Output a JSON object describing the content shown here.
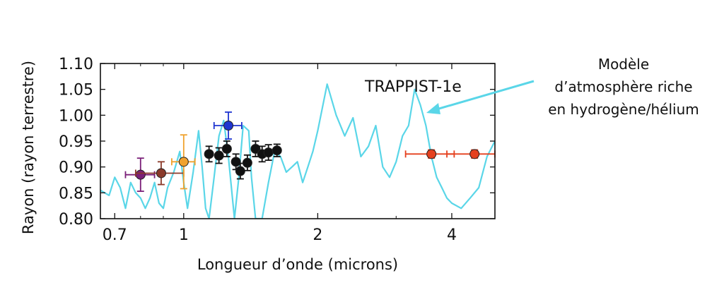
{
  "chart_data": {
    "type": "scatter",
    "xlabel": "Longueur d’onde (microns)",
    "ylabel": "Rayon (rayon terrestre)",
    "x_scale": "log",
    "xlim": [
      0.65,
      5.0
    ],
    "ylim": [
      0.8,
      1.1
    ],
    "x_ticks": [
      0.7,
      1,
      2,
      4
    ],
    "x_tick_labels": [
      "0.7",
      "1",
      "2",
      "4"
    ],
    "y_ticks": [
      0.8,
      0.85,
      0.9,
      0.95,
      1.0,
      1.05,
      1.1
    ],
    "y_tick_labels": [
      "0.80",
      "0.85",
      "0.90",
      "0.95",
      "1.00",
      "1.05",
      "1.10"
    ],
    "grid": false,
    "annotations": [
      {
        "text": "TRAPPIST-1e"
      },
      {
        "text": "Modèle",
        "line": 1
      },
      {
        "text": "d’atmosphère riche",
        "line": 2
      },
      {
        "text": "en hydrogène/hélium",
        "line": 3
      }
    ],
    "model": {
      "color": "#5ad6e8",
      "x": [
        0.65,
        0.68,
        0.7,
        0.72,
        0.74,
        0.76,
        0.78,
        0.8,
        0.82,
        0.84,
        0.86,
        0.88,
        0.9,
        0.92,
        0.95,
        0.98,
        1.0,
        1.02,
        1.05,
        1.08,
        1.1,
        1.12,
        1.14,
        1.17,
        1.2,
        1.23,
        1.26,
        1.3,
        1.33,
        1.36,
        1.4,
        1.42,
        1.45,
        1.5,
        1.55,
        1.6,
        1.65,
        1.7,
        1.75,
        1.8,
        1.85,
        1.9,
        1.95,
        2.0,
        2.1,
        2.2,
        2.3,
        2.4,
        2.5,
        2.6,
        2.7,
        2.8,
        2.9,
        3.0,
        3.1,
        3.2,
        3.3,
        3.4,
        3.5,
        3.6,
        3.7,
        3.8,
        3.9,
        4.0,
        4.2,
        4.4,
        4.6,
        4.8,
        5.0
      ],
      "y": [
        0.855,
        0.845,
        0.88,
        0.86,
        0.82,
        0.87,
        0.85,
        0.84,
        0.82,
        0.84,
        0.87,
        0.83,
        0.82,
        0.86,
        0.89,
        0.93,
        0.87,
        0.82,
        0.89,
        0.97,
        0.9,
        0.82,
        0.8,
        0.88,
        0.96,
        0.99,
        0.92,
        0.8,
        0.88,
        0.98,
        0.97,
        0.88,
        0.8,
        0.8,
        0.87,
        0.93,
        0.92,
        0.89,
        0.9,
        0.91,
        0.87,
        0.9,
        0.93,
        0.97,
        1.06,
        1.0,
        0.96,
        0.995,
        0.92,
        0.94,
        0.98,
        0.9,
        0.88,
        0.91,
        0.96,
        0.98,
        1.05,
        1.02,
        0.98,
        0.92,
        0.88,
        0.86,
        0.84,
        0.83,
        0.82,
        0.84,
        0.86,
        0.92,
        0.95
      ]
    },
    "series": [
      {
        "color": "#7a1f78",
        "points": [
          {
            "x": 0.8,
            "y": 0.885,
            "xerr": 0.06,
            "yerr": 0.032
          }
        ]
      },
      {
        "color": "#8b3a2a",
        "points": [
          {
            "x": 0.89,
            "y": 0.888,
            "xerr": 0.11,
            "yerr": 0.022
          }
        ]
      },
      {
        "color": "#f0a22e",
        "points": [
          {
            "x": 1.0,
            "y": 0.91,
            "xerr": 0.06,
            "yerr": 0.052
          }
        ]
      },
      {
        "color": "#1f35d0",
        "points": [
          {
            "x": 1.26,
            "y": 0.98,
            "xerr": 0.09,
            "yerr": 0.026
          }
        ]
      },
      {
        "color": "#111111",
        "points": [
          {
            "x": 1.14,
            "y": 0.925,
            "xerr": 0.0,
            "yerr": 0.015
          },
          {
            "x": 1.2,
            "y": 0.922,
            "xerr": 0.0,
            "yerr": 0.015
          },
          {
            "x": 1.25,
            "y": 0.935,
            "xerr": 0.0,
            "yerr": 0.015
          },
          {
            "x": 1.31,
            "y": 0.91,
            "xerr": 0.0,
            "yerr": 0.015
          },
          {
            "x": 1.34,
            "y": 0.892,
            "xerr": 0.0,
            "yerr": 0.015
          },
          {
            "x": 1.39,
            "y": 0.908,
            "xerr": 0.0,
            "yerr": 0.015
          },
          {
            "x": 1.45,
            "y": 0.935,
            "xerr": 0.0,
            "yerr": 0.015
          },
          {
            "x": 1.5,
            "y": 0.925,
            "xerr": 0.0,
            "yerr": 0.015
          },
          {
            "x": 1.55,
            "y": 0.928,
            "xerr": 0.0,
            "yerr": 0.015
          },
          {
            "x": 1.62,
            "y": 0.932,
            "xerr": 0.0,
            "yerr": 0.012
          }
        ]
      },
      {
        "color": "#e5401e",
        "points": [
          {
            "x": 3.6,
            "y": 0.925,
            "xerr": 0.45,
            "yerr": 0.008
          },
          {
            "x": 4.5,
            "y": 0.925,
            "xerr": 0.6,
            "yerr": 0.008
          }
        ]
      }
    ]
  }
}
